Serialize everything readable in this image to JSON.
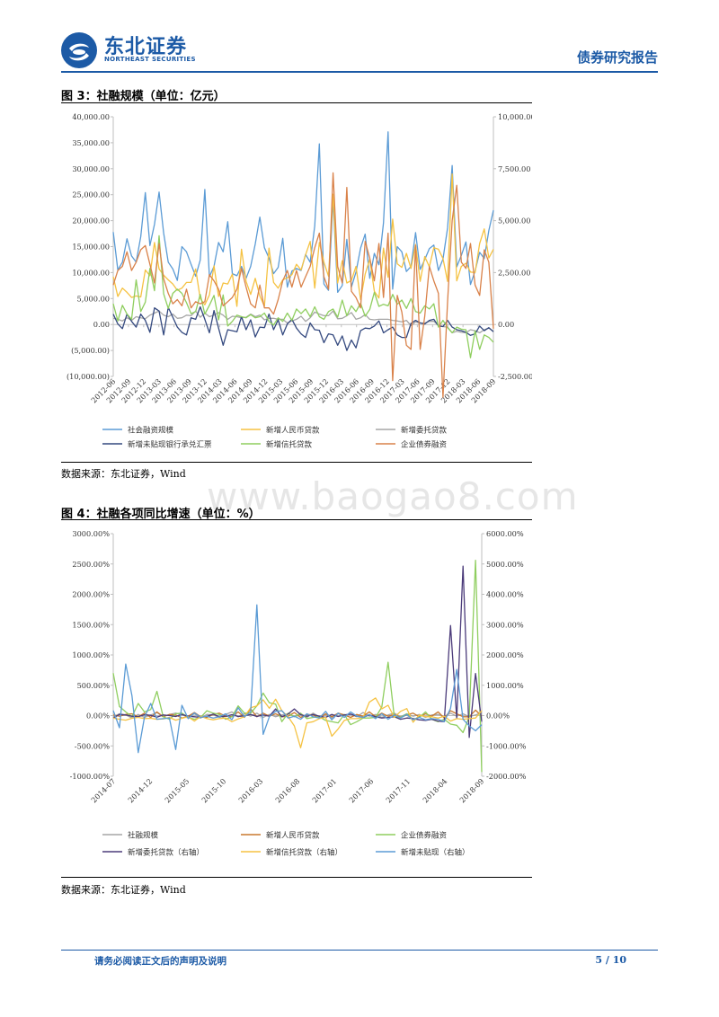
{
  "header": {
    "logo_cn": "东北证券",
    "logo_en": "NORTHEAST SECURITIES",
    "report_type": "债券研究报告",
    "brand_color": "#1c5aa6"
  },
  "figures": [
    {
      "title": "图 3：社融规模（单位：亿元）",
      "source": "数据来源：东北证券，Wind"
    },
    {
      "title": "图 4：社融各项同比增速（单位：%）",
      "source": "数据来源：东北证券，Wind"
    }
  ],
  "watermark": "www.baogao8.com",
  "footer": {
    "notice": "请务必阅读正文后的声明及说明",
    "page": "5 / 10"
  },
  "chart_data": [
    {
      "type": "line",
      "x_ticks": [
        "2012-06",
        "2012-09",
        "2012-12",
        "2013-03",
        "2013-06",
        "2013-09",
        "2013-12",
        "2014-03",
        "2014-06",
        "2014-09",
        "2014-12",
        "2015-03",
        "2015-06",
        "2015-09",
        "2015-12",
        "2016-03",
        "2016-06",
        "2016-09",
        "2016-12",
        "2017-03",
        "2017-06",
        "2017-09",
        "2017-12",
        "2018-03",
        "2018-06",
        "2018-09"
      ],
      "left_axis": {
        "ylim": [
          -10000,
          40000
        ],
        "ticks": [
          "40,000.00",
          "35,000.00",
          "30,000.00",
          "25,000.00",
          "20,000.00",
          "15,000.00",
          "10,000.00",
          "5,000.00",
          "0.00",
          "(5,000.00)",
          "(10,000.00)"
        ]
      },
      "right_axis": {
        "ylim": [
          -2500,
          10000
        ],
        "ticks": [
          "10,000.00",
          "7,500.00",
          "5,000.00",
          "2,500.00",
          "0.00",
          "-2,500.00"
        ]
      },
      "series": [
        {
          "name": "社会融资规模",
          "color": "#5b9bd5",
          "axis": "left",
          "values": [
            17800,
            10500,
            12000,
            16500,
            13200,
            12000,
            16900,
            25400,
            15200,
            19300,
            25500,
            17600,
            12000,
            10700,
            8500,
            15000,
            14000,
            11600,
            9300,
            12400,
            26000,
            9200,
            11200,
            15800,
            14000,
            19800,
            9800,
            9400,
            11200,
            8900,
            11200,
            15500,
            20700,
            14800,
            12800,
            9800,
            11000,
            16600,
            7200,
            10300,
            10800,
            10400,
            13500,
            12000,
            19000,
            34800,
            7800,
            6600,
            24100,
            6200,
            7500,
            16400,
            7200,
            10100,
            14700,
            17400,
            8900,
            13700,
            11500,
            19600,
            37100,
            6800,
            15000,
            14000,
            10200,
            11200,
            17700,
            10600,
            12500,
            14600,
            15300,
            10400,
            12600,
            18600,
            30600,
            11100,
            13300,
            15900,
            7700,
            10300,
            13900,
            12700,
            18100,
            22000
          ]
        },
        {
          "name": "新增人民币贷款",
          "color": "#f5c242",
          "axis": "left",
          "values": [
            9200,
            5400,
            7000,
            6200,
            5200,
            5500,
            5300,
            10500,
            9400,
            15800,
            10700,
            9500,
            8600,
            7800,
            6600,
            7000,
            8100,
            8100,
            10700,
            5000,
            3800,
            5700,
            11300,
            5400,
            8000,
            7800,
            9700,
            3500,
            14500,
            8300,
            5800,
            8900,
            5500,
            3500,
            14700,
            8100,
            7000,
            8600,
            9000,
            9600,
            11600,
            10500,
            13400,
            16000,
            7000,
            15800,
            12000,
            9300,
            25100,
            8000,
            12300,
            8000,
            8500,
            11200,
            4800,
            9700,
            12600,
            6400,
            5100,
            14700,
            9100,
            20300,
            11700,
            11000,
            13700,
            10800,
            15400,
            8300,
            13100,
            11100,
            14800,
            14500,
            12700,
            8300,
            29000,
            8400,
            11200,
            11800,
            10100,
            10000,
            15600,
            18400,
            12800,
            14500
          ]
        },
        {
          "name": "新增委托贷款",
          "color": "#a6a6a6",
          "axis": "left",
          "values": [
            1200,
            1000,
            700,
            1300,
            800,
            1500,
            1300,
            1100,
            1800,
            2200,
            2600,
            1800,
            1500,
            2000,
            1200,
            1300,
            1800,
            1700,
            2600,
            1400,
            2200,
            1500,
            1800,
            2300,
            1800,
            1000,
            1600,
            1500,
            1300,
            1400,
            2000,
            1500,
            1800,
            900,
            1200,
            1200,
            1000,
            1000,
            300,
            700,
            1000,
            1600,
            600,
            1300,
            2400,
            2000,
            1700,
            1700,
            2600,
            1100,
            1200,
            1700,
            2300,
            1000,
            1300,
            1900,
            1000,
            900,
            1000,
            1000,
            1000,
            800,
            700,
            500,
            800,
            -200,
            500,
            300,
            300,
            600,
            600,
            -100,
            -400,
            -500,
            -1600,
            -1300,
            -1500,
            -1600,
            -1000,
            -1200,
            -1600,
            -1000,
            -700,
            -1300
          ]
        },
        {
          "name": "新增未贴现银行承兑汇票",
          "color": "#34497f",
          "axis": "left",
          "values": [
            2000,
            100,
            -800,
            2000,
            600,
            -500,
            2000,
            800,
            -1500,
            3200,
            2600,
            -2000,
            3300,
            1400,
            -500,
            -1500,
            -2000,
            1300,
            1000,
            3400,
            1000,
            -1600,
            2700,
            -700,
            -4000,
            -1000,
            -1200,
            -1400,
            1500,
            -1000,
            900,
            -2400,
            -500,
            -600,
            2000,
            -1000,
            900,
            -2000,
            100,
            1000,
            -700,
            -1800,
            -2500,
            300,
            -1000,
            -1100,
            -3500,
            -1800,
            -2000,
            -4000,
            -2200,
            -5000,
            -3000,
            -4500,
            -1200,
            -700,
            -800,
            -300,
            700,
            -1600,
            -1000,
            -500,
            -2000,
            -2500,
            -2500,
            200,
            800,
            300,
            100,
            800,
            1000,
            -300,
            -400,
            800,
            -500,
            -1000,
            -1200,
            -1500,
            -2100,
            -1800,
            -300,
            -1200,
            -600,
            -1400
          ]
        },
        {
          "name": "新增信托贷款",
          "color": "#8fce5f",
          "axis": "left",
          "values": [
            4000,
            700,
            3700,
            2000,
            1000,
            8600,
            2500,
            4300,
            10800,
            6500,
            17100,
            5900,
            3100,
            6000,
            6800,
            6000,
            4200,
            2100,
            2500,
            5800,
            2000,
            3700,
            5600,
            900,
            5700,
            -300,
            600,
            1800,
            1500,
            1300,
            1900,
            1300,
            1500,
            2200,
            600,
            -100,
            1300,
            600,
            2200,
            800,
            3000,
            2100,
            3000,
            1500,
            3400,
            1500,
            1000,
            2500,
            3000,
            1400,
            4700,
            1700,
            3600,
            2500,
            4100,
            1600,
            2900,
            6200,
            3500,
            3900,
            3600,
            5800,
            3900,
            4700,
            3100,
            5000,
            2500,
            2200,
            3600,
            3000,
            4000,
            -500,
            800,
            -600,
            -1600,
            -500,
            -900,
            -1000,
            -6400,
            -1200,
            -4800,
            -2000,
            -2500,
            -3400
          ]
        },
        {
          "name": "企业债券融资",
          "color": "#d9824a",
          "axis": "right",
          "values": [
            1900,
            2600,
            2800,
            3500,
            2600,
            3000,
            3600,
            3800,
            2900,
            2000,
            3900,
            2200,
            1500,
            1000,
            1200,
            900,
            1700,
            800,
            1100,
            1000,
            1100,
            2400,
            2100,
            1700,
            900,
            1100,
            1300,
            1700,
            2700,
            1800,
            1000,
            800,
            1900,
            800,
            800,
            500,
            1200,
            2100,
            2600,
            1800,
            2600,
            1800,
            2300,
            2800,
            3700,
            4400,
            2300,
            1700,
            7300,
            2800,
            2000,
            6600,
            1600,
            1300,
            800,
            4000,
            3200,
            2100,
            3900,
            1300,
            4400,
            -2700,
            1400,
            600,
            -1000,
            -1200,
            3800,
            -1200,
            400,
            2800,
            2100,
            1500,
            -3500,
            1100,
            5000,
            6700,
            3000,
            2700,
            3900,
            1900,
            1400,
            3600,
            3000,
            -200
          ]
        }
      ]
    },
    {
      "type": "line",
      "x_ticks": [
        "2014-07",
        "2014-12",
        "2015-05",
        "2015-10",
        "2016-03",
        "2016-08",
        "2017-01",
        "2017-06",
        "2017-11",
        "2018-04",
        "2018-09"
      ],
      "left_axis": {
        "ylim": [
          -1000,
          3000
        ],
        "ticks": [
          "3000.00%",
          "2500.00%",
          "2000.00%",
          "1500.00%",
          "1000.00%",
          "500.00%",
          "0.00%",
          "-500.00%",
          "-1000.00%"
        ]
      },
      "right_axis": {
        "ylim": [
          -2000,
          6000
        ],
        "ticks": [
          "6000.00%",
          "5000.00%",
          "4000.00%",
          "3000.00%",
          "2000.00%",
          "1000.00%",
          "0.00%",
          "-1000.00%",
          "-2000.00%"
        ]
      },
      "series": [
        {
          "name": "社融规模",
          "color": "#a6a6a6",
          "axis": "left",
          "values": [
            -20,
            30,
            10,
            -40,
            20,
            -30,
            10,
            50,
            -20,
            20,
            40,
            10,
            -20,
            30,
            -40,
            20,
            10,
            -30,
            20,
            60,
            -20,
            30,
            -10,
            40,
            -30,
            20,
            -20,
            10,
            30,
            -10,
            20,
            -30,
            40,
            -20,
            10,
            -40,
            30,
            10,
            20,
            -20,
            50,
            -10,
            20,
            -30,
            10,
            40,
            -20,
            30,
            -10,
            20,
            -30,
            10,
            20,
            -20,
            40,
            -10,
            30,
            -20,
            10,
            50
          ]
        },
        {
          "name": "新增人民币贷款",
          "color": "#c9782e",
          "axis": "left",
          "values": [
            10,
            -10,
            20,
            30,
            -20,
            40,
            -30,
            60,
            -20,
            20,
            10,
            -40,
            -10,
            50,
            -20,
            -30,
            20,
            40,
            -10,
            -20,
            60,
            -30,
            110,
            -20,
            40,
            -10,
            30,
            -20,
            -10,
            50,
            -30,
            20,
            10,
            -40,
            30,
            -20,
            40,
            10,
            -30,
            20,
            -10,
            60,
            -20,
            40,
            -10,
            20,
            -30,
            10,
            40,
            -20,
            30,
            -10,
            60,
            -40,
            80,
            30,
            -20,
            -20,
            90,
            -10
          ]
        },
        {
          "name": "企业债券融资",
          "color": "#8fce5f",
          "axis": "left",
          "values": [
            700,
            150,
            60,
            -20,
            200,
            60,
            100,
            400,
            -20,
            -60,
            30,
            40,
            -30,
            -60,
            -30,
            80,
            40,
            20,
            -60,
            -20,
            160,
            40,
            40,
            160,
            370,
            210,
            190,
            -100,
            40,
            -20,
            40,
            -50,
            -30,
            -20,
            -80,
            -100,
            -120,
            20,
            -150,
            -100,
            -40,
            -40,
            -30,
            140,
            880,
            -20,
            -30,
            30,
            -60,
            -30,
            60,
            -60,
            -100,
            -60,
            -140,
            -160,
            -280,
            -20,
            2560,
            -930
          ]
        },
        {
          "name": "新增委托贷款（右轴）",
          "color": "#4b3b7a",
          "axis": "right",
          "values": [
            -80,
            40,
            20,
            -20,
            -40,
            30,
            10,
            -50,
            20,
            0,
            -30,
            40,
            -20,
            -40,
            -60,
            -30,
            50,
            -40,
            -20,
            30,
            -30,
            -10,
            40,
            -30,
            20,
            -20,
            220,
            -40,
            50,
            220,
            30,
            -20,
            40,
            -20,
            -60,
            40,
            -30,
            20,
            50,
            -20,
            -60,
            20,
            -40,
            -80,
            -60,
            -40,
            -120,
            -80,
            -100,
            -140,
            -160,
            -120,
            -180,
            -200,
            2970,
            -100,
            4930,
            -720,
            1390,
            -200
          ]
        },
        {
          "name": "新增信托贷款（右轴）",
          "color": "#f5c242",
          "axis": "right",
          "values": [
            -80,
            -120,
            -150,
            -90,
            -60,
            -100,
            -90,
            -120,
            -110,
            -60,
            -150,
            -90,
            -40,
            -180,
            -20,
            -100,
            -140,
            -100,
            -80,
            -200,
            -110,
            -40,
            260,
            320,
            520,
            240,
            540,
            160,
            -40,
            -340,
            -1060,
            -240,
            -200,
            -100,
            -60,
            -680,
            -440,
            -160,
            -100,
            -100,
            -60,
            440,
            580,
            220,
            340,
            -60,
            140,
            230,
            -220,
            20,
            -40,
            -40,
            -80,
            -20,
            -180,
            -100,
            -120,
            -100,
            -80,
            160
          ]
        },
        {
          "name": "新增未贴现（右轴）",
          "color": "#5b9bd5",
          "axis": "right",
          "values": [
            170,
            -400,
            1700,
            660,
            -1220,
            -60,
            400,
            -120,
            -100,
            -80,
            -1120,
            340,
            -100,
            90,
            -60,
            -20,
            -80,
            -40,
            60,
            -140,
            260,
            -40,
            120,
            3650,
            -620,
            -40,
            140,
            160,
            -80,
            -20,
            -120,
            60,
            -40,
            -80,
            140,
            -140,
            80,
            -60,
            120,
            -20,
            -60,
            40,
            -100,
            60,
            -120,
            20,
            -80,
            40,
            -140,
            -60,
            -140,
            -100,
            -120,
            -200,
            240,
            1520,
            -120,
            -340,
            -500,
            -300
          ]
        }
      ]
    }
  ]
}
